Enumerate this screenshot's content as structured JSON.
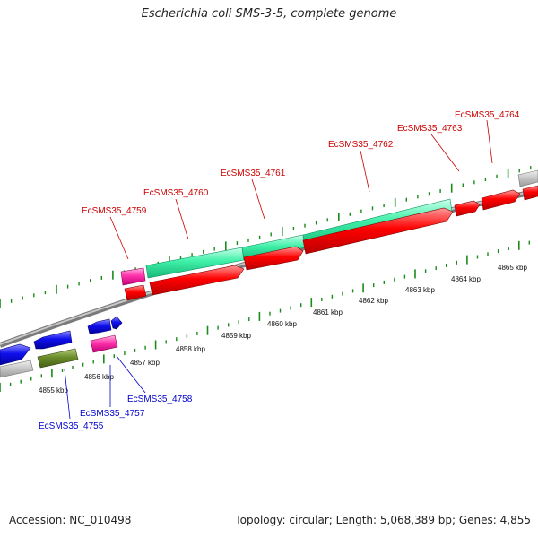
{
  "title": "Escherichia coli SMS-3-5, complete genome",
  "footer": {
    "accession": "Accession: NC_010498",
    "summary": "Topology: circular; Length: 5,068,389 bp; Genes: 4,855"
  },
  "colors": {
    "backbone": "#808080",
    "tick": "#1a8c1a",
    "label_forward": "#cc0000",
    "label_reverse": "#0000cc"
  },
  "scale_labels": [
    "4855 kbp",
    "4856 kbp",
    "4857 kbp",
    "4858 kbp",
    "4859 kbp",
    "4860 kbp",
    "4861 kbp",
    "4862 kbp",
    "4863 kbp",
    "4864 kbp",
    "4865 kbp"
  ],
  "forward_labels": [
    "EcSMS35_4759",
    "EcSMS35_4760",
    "EcSMS35_4761",
    "EcSMS35_4762",
    "EcSMS35_4763",
    "EcSMS35_4764"
  ],
  "reverse_labels": [
    "EcSMS35_4755",
    "EcSMS35_4757",
    "EcSMS35_4758"
  ]
}
